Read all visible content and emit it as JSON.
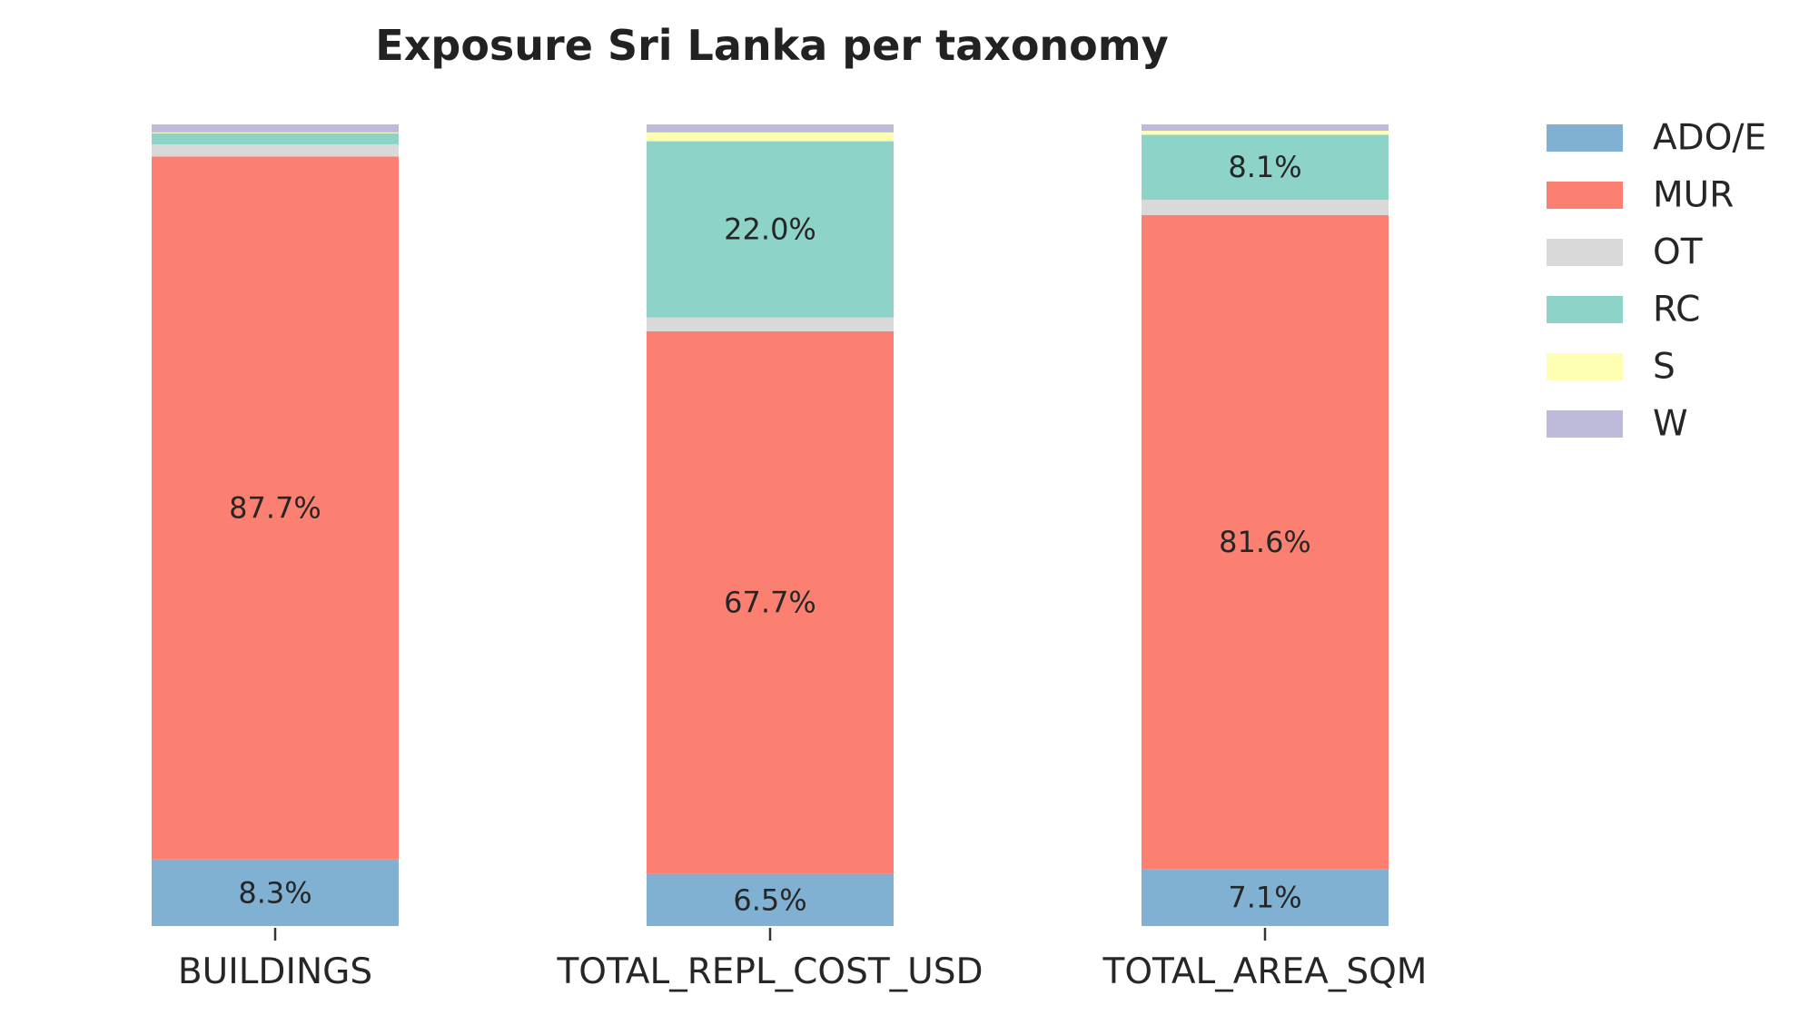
{
  "chart_data": {
    "type": "bar",
    "stacked": true,
    "normalized": true,
    "title": "Exposure Sri Lanka per taxonomy",
    "xlabel": "",
    "ylabel": "",
    "ylim": [
      0,
      1
    ],
    "grid": false,
    "legend_position": "right",
    "categories": [
      "BUILDINGS",
      "TOTAL_REPL_COST_USD",
      "TOTAL_AREA_SQM"
    ],
    "series": [
      {
        "name": "ADO/E",
        "color": "#80b1d3",
        "values": [
          0.083,
          0.065,
          0.071
        ],
        "labels": [
          "8.3%",
          "6.5%",
          "7.1%"
        ]
      },
      {
        "name": "MUR",
        "color": "#fb8072",
        "values": [
          0.877,
          0.677,
          0.816
        ],
        "labels": [
          "87.7%",
          "67.7%",
          "81.6%"
        ]
      },
      {
        "name": "OT",
        "color": "#d9d9d9",
        "values": [
          0.015,
          0.017,
          0.019
        ],
        "labels": [
          "",
          "",
          ""
        ]
      },
      {
        "name": "RC",
        "color": "#8dd3c7",
        "values": [
          0.014,
          0.22,
          0.081
        ],
        "labels": [
          "",
          "22.0%",
          "8.1%"
        ]
      },
      {
        "name": "S",
        "color": "#ffffb3",
        "values": [
          0.001,
          0.011,
          0.005
        ],
        "labels": [
          "",
          "",
          ""
        ]
      },
      {
        "name": "W",
        "color": "#bebada",
        "values": [
          0.01,
          0.01,
          0.008
        ],
        "labels": [
          "",
          "",
          ""
        ]
      }
    ]
  }
}
